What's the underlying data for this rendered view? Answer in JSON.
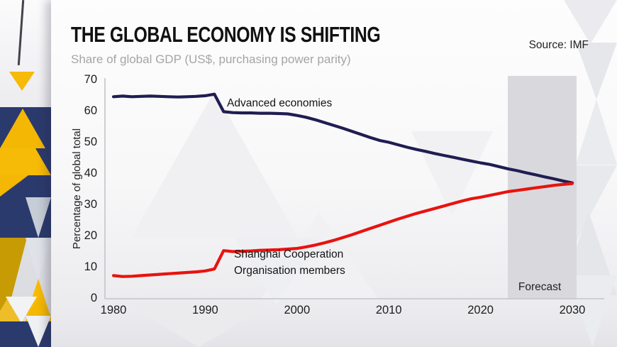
{
  "header": {
    "title": "THE GLOBAL ECONOMY IS SHIFTING",
    "subtitle": "Share of global GDP (US$, purchasing power parity)",
    "source": "Source: IMF"
  },
  "colors": {
    "accent_navy": "#2b3a6d",
    "accent_yellow": "#f5b90a",
    "line_advanced": "#201d52",
    "line_sco": "#e8130e",
    "forecast_band": "#d9d9dd"
  },
  "chart_data": {
    "type": "line",
    "title": "THE GLOBAL ECONOMY IS SHIFTING",
    "subtitle": "Share of global GDP (US$, purchasing power parity)",
    "xlabel": "",
    "ylabel": "Percentage of global total",
    "xlim": [
      1980,
      2030
    ],
    "ylim": [
      0,
      70
    ],
    "grid": false,
    "legend_position": "inline-annotations",
    "xticks": [
      1980,
      1990,
      2000,
      2010,
      2020,
      2030
    ],
    "yticks": [
      0,
      10,
      20,
      30,
      40,
      50,
      60,
      70
    ],
    "forecast_band": {
      "label": "Forecast",
      "x_start": 2023,
      "x_end": 2030.5
    },
    "series_labels": {
      "advanced": "Advanced economies",
      "sco_line1": "Shanghai Cooperation",
      "sco_line2": "Organisation members"
    },
    "x": [
      1980,
      1981,
      1982,
      1983,
      1984,
      1985,
      1986,
      1987,
      1988,
      1989,
      1990,
      1991,
      1992,
      1993,
      1994,
      1995,
      1996,
      1997,
      1998,
      1999,
      2000,
      2001,
      2002,
      2003,
      2004,
      2005,
      2006,
      2007,
      2008,
      2009,
      2010,
      2011,
      2012,
      2013,
      2014,
      2015,
      2016,
      2017,
      2018,
      2019,
      2020,
      2021,
      2022,
      2023,
      2024,
      2025,
      2026,
      2027,
      2028,
      2029,
      2030
    ],
    "series": [
      {
        "name": "Advanced economies",
        "color": "#201d52",
        "values": [
          64.6,
          64.8,
          64.6,
          64.7,
          64.8,
          64.7,
          64.6,
          64.5,
          64.6,
          64.7,
          64.9,
          65.4,
          59.8,
          59.5,
          59.4,
          59.4,
          59.3,
          59.3,
          59.2,
          59.1,
          58.6,
          58.0,
          57.2,
          56.3,
          55.4,
          54.5,
          53.5,
          52.5,
          51.5,
          50.6,
          50.0,
          49.2,
          48.4,
          47.7,
          47.1,
          46.4,
          45.8,
          45.2,
          44.6,
          44.0,
          43.4,
          42.9,
          42.2,
          41.5,
          40.9,
          40.2,
          39.6,
          38.9,
          38.3,
          37.6,
          37.0
        ]
      },
      {
        "name": "Shanghai Cooperation Organisation members",
        "color": "#e8130e",
        "values": [
          7.3,
          7.0,
          7.1,
          7.3,
          7.5,
          7.7,
          7.9,
          8.1,
          8.3,
          8.5,
          8.8,
          9.4,
          15.3,
          15.0,
          15.1,
          15.2,
          15.4,
          15.5,
          15.6,
          15.8,
          16.0,
          16.5,
          17.1,
          17.8,
          18.6,
          19.5,
          20.4,
          21.4,
          22.4,
          23.4,
          24.4,
          25.4,
          26.3,
          27.2,
          28.0,
          28.8,
          29.6,
          30.4,
          31.2,
          31.9,
          32.4,
          33.0,
          33.6,
          34.2,
          34.6,
          35.0,
          35.4,
          35.8,
          36.2,
          36.5,
          36.8
        ]
      }
    ]
  }
}
